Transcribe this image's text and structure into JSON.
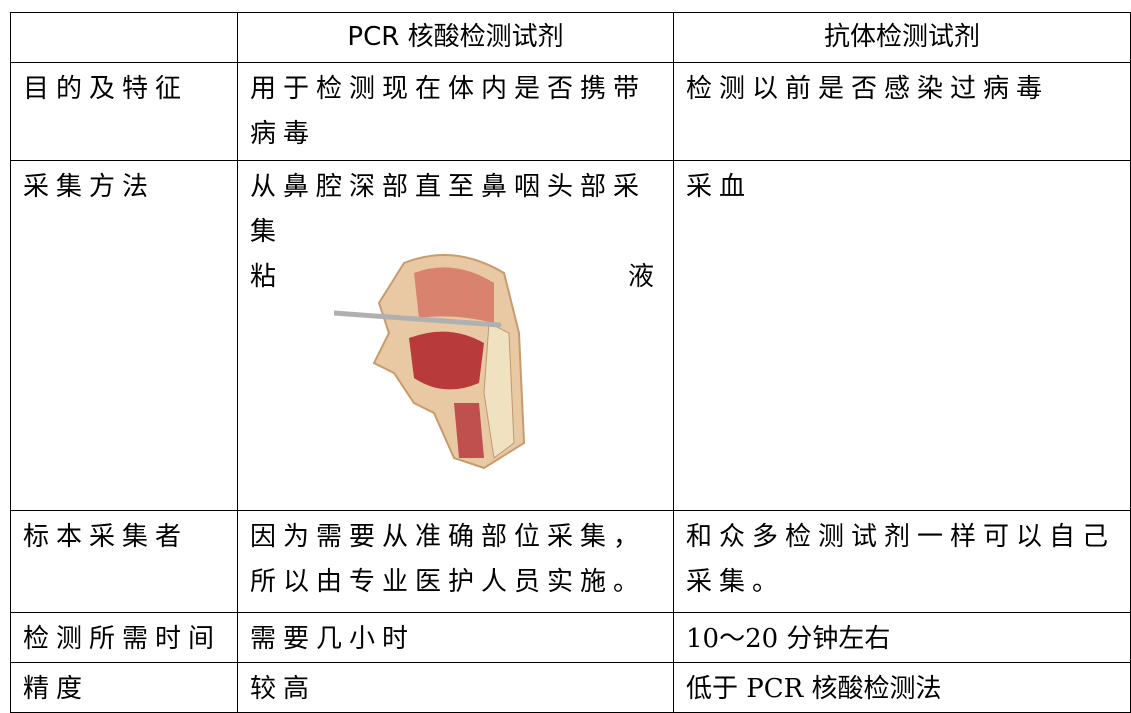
{
  "table": {
    "header": [
      "PCR 核酸检测试剂",
      "抗体检测试剂"
    ],
    "rows": [
      [
        "目的及特征",
        "用于检测现在体内是否携带病毒",
        "检测以前是否感染过病毒"
      ],
      [
        "采集方法",
        [
          "从鼻腔深部直至鼻咽头部采集",
          "粘",
          "液"
        ],
        "采血"
      ],
      [
        "标本采集者",
        "因为需要从准确部位采集，所以由专业医护人员实施。",
        "和众多检测试剂一样可以自己采集。"
      ],
      [
        "检测所需时间",
        "需要几小时",
        "10～20 分钟左右"
      ],
      [
        "精度",
        "较高",
        "低于 PCR 核酸检测法"
      ]
    ]
  }
}
